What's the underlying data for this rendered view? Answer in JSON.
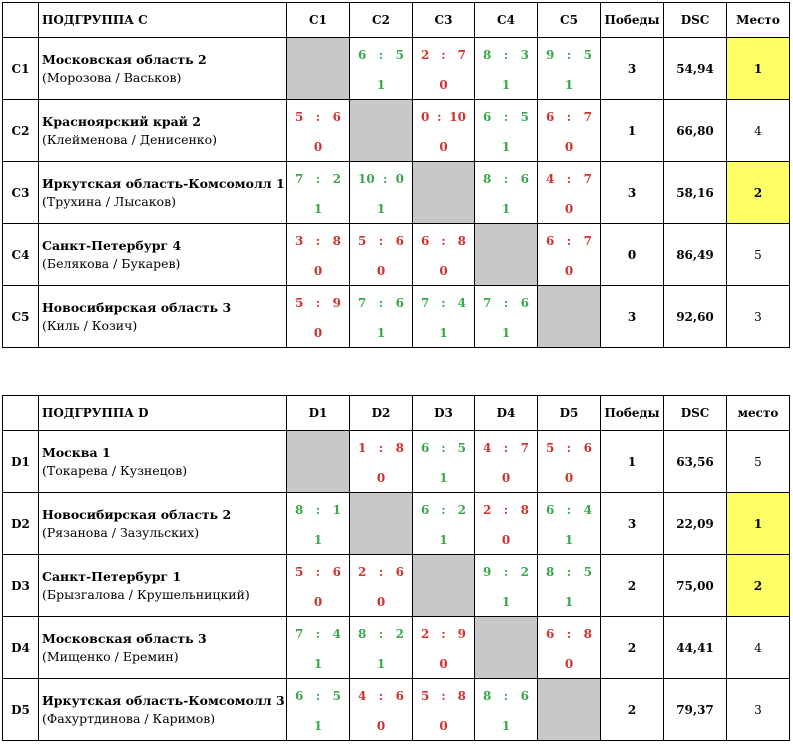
{
  "groups": [
    {
      "title": "ПОДГРУППА C",
      "cols": [
        "C1",
        "C2",
        "C3",
        "C4",
        "C5"
      ],
      "wins_header": "Победы",
      "dsc_header": "DSC",
      "place_header": "Место",
      "rows": [
        {
          "code": "C1",
          "team": "Московская область 2",
          "players": "(Морозова / Васьков)",
          "cells": [
            null,
            {
              "a": "6",
              "b": "5",
              "p": "1",
              "w": true
            },
            {
              "a": "2",
              "b": "7",
              "p": "0",
              "w": false
            },
            {
              "a": "8",
              "b": "3",
              "p": "1",
              "w": true
            },
            {
              "a": "9",
              "b": "5",
              "p": "1",
              "w": true
            }
          ],
          "wins": "3",
          "dsc": "54,94",
          "place": "1",
          "top": true
        },
        {
          "code": "C2",
          "team": "Красноярский край 2",
          "players": "(Клейменова / Денисенко)",
          "cells": [
            {
              "a": "5",
              "b": "6",
              "p": "0",
              "w": false
            },
            null,
            {
              "a": "0",
              "b": "10",
              "p": "0",
              "w": false
            },
            {
              "a": "6",
              "b": "5",
              "p": "1",
              "w": true
            },
            {
              "a": "6",
              "b": "7",
              "p": "0",
              "w": false
            }
          ],
          "wins": "1",
          "dsc": "66,80",
          "place": "4",
          "top": false
        },
        {
          "code": "C3",
          "team": "Иркутская область-Комсомолл 1",
          "players": "(Трухина / Лысаков)",
          "cells": [
            {
              "a": "7",
              "b": "2",
              "p": "1",
              "w": true
            },
            {
              "a": "10",
              "b": "0",
              "p": "1",
              "w": true
            },
            null,
            {
              "a": "8",
              "b": "6",
              "p": "1",
              "w": true
            },
            {
              "a": "4",
              "b": "7",
              "p": "0",
              "w": false
            }
          ],
          "wins": "3",
          "dsc": "58,16",
          "place": "2",
          "top": true
        },
        {
          "code": "C4",
          "team": "Санкт-Петербург 4",
          "players": "(Белякова / Букарев)",
          "cells": [
            {
              "a": "3",
              "b": "8",
              "p": "0",
              "w": false
            },
            {
              "a": "5",
              "b": "6",
              "p": "0",
              "w": false
            },
            {
              "a": "6",
              "b": "8",
              "p": "0",
              "w": false
            },
            null,
            {
              "a": "6",
              "b": "7",
              "p": "0",
              "w": false
            }
          ],
          "wins": "0",
          "dsc": "86,49",
          "place": "5",
          "top": false
        },
        {
          "code": "C5",
          "team": "Новосибирская область 3",
          "players": "(Киль / Козич)",
          "cells": [
            {
              "a": "5",
              "b": "9",
              "p": "0",
              "w": false
            },
            {
              "a": "7",
              "b": "6",
              "p": "1",
              "w": true
            },
            {
              "a": "7",
              "b": "4",
              "p": "1",
              "w": true
            },
            {
              "a": "7",
              "b": "6",
              "p": "1",
              "w": true
            },
            null
          ],
          "wins": "3",
          "dsc": "92,60",
          "place": "3",
          "top": false
        }
      ]
    },
    {
      "title": "ПОДГРУППА D",
      "cols": [
        "D1",
        "D2",
        "D3",
        "D4",
        "D5"
      ],
      "wins_header": "Победы",
      "dsc_header": "DSC",
      "place_header": "место",
      "rows": [
        {
          "code": "D1",
          "team": "Москва 1",
          "players": "(Токарева / Кузнецов)",
          "cells": [
            null,
            {
              "a": "1",
              "b": "8",
              "p": "0",
              "w": false
            },
            {
              "a": "6",
              "b": "5",
              "p": "1",
              "w": true
            },
            {
              "a": "4",
              "b": "7",
              "p": "0",
              "w": false
            },
            {
              "a": "5",
              "b": "6",
              "p": "0",
              "w": false
            }
          ],
          "wins": "1",
          "dsc": "63,56",
          "place": "5",
          "top": false
        },
        {
          "code": "D2",
          "team": "Новосибирская область 2",
          "players": "(Рязанова / Зазульских)",
          "cells": [
            {
              "a": "8",
              "b": "1",
              "p": "1",
              "w": true
            },
            null,
            {
              "a": "6",
              "b": "2",
              "p": "1",
              "w": true
            },
            {
              "a": "2",
              "b": "8",
              "p": "0",
              "w": false
            },
            {
              "a": "6",
              "b": "4",
              "p": "1",
              "w": true
            }
          ],
          "wins": "3",
          "dsc": "22,09",
          "place": "1",
          "top": true
        },
        {
          "code": "D3",
          "team": "Санкт-Петербург 1",
          "players": "(Брызгалова / Крушельницкий)",
          "cells": [
            {
              "a": "5",
              "b": "6",
              "p": "0",
              "w": false
            },
            {
              "a": "2",
              "b": "6",
              "p": "0",
              "w": false
            },
            null,
            {
              "a": "9",
              "b": "2",
              "p": "1",
              "w": true
            },
            {
              "a": "8",
              "b": "5",
              "p": "1",
              "w": true
            }
          ],
          "wins": "2",
          "dsc": "75,00",
          "place": "2",
          "top": true
        },
        {
          "code": "D4",
          "team": "Московская область 3",
          "players": "(Мищенко / Еремин)",
          "cells": [
            {
              "a": "7",
              "b": "4",
              "p": "1",
              "w": true
            },
            {
              "a": "8",
              "b": "2",
              "p": "1",
              "w": true
            },
            {
              "a": "2",
              "b": "9",
              "p": "0",
              "w": false
            },
            null,
            {
              "a": "6",
              "b": "8",
              "p": "0",
              "w": false
            }
          ],
          "wins": "2",
          "dsc": "44,41",
          "place": "4",
          "top": false
        },
        {
          "code": "D5",
          "team": "Иркутская область-Комсомолл 3",
          "players": "(Фахуртдинова / Каримов)",
          "cells": [
            {
              "a": "6",
              "b": "5",
              "p": "1",
              "w": true
            },
            {
              "a": "4",
              "b": "6",
              "p": "0",
              "w": false
            },
            {
              "a": "5",
              "b": "8",
              "p": "0",
              "w": false
            },
            {
              "a": "8",
              "b": "6",
              "p": "1",
              "w": true
            },
            null
          ],
          "wins": "2",
          "dsc": "79,37",
          "place": "3",
          "top": false
        }
      ]
    }
  ],
  "colors": {
    "win": "#3aa84a",
    "lose": "#d2322d",
    "self": "#c8c8c8",
    "top_place": "#ffff66"
  }
}
